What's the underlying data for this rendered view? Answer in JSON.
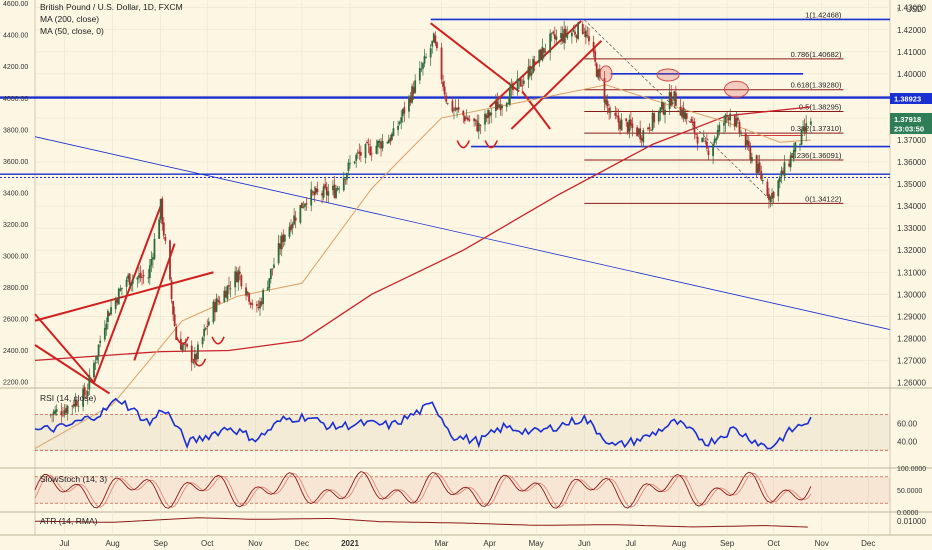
{
  "legend": {
    "title": "British Pound / U.S. Dollar, 1D, FXCM",
    "ma200": "MA (200, close)",
    "ma50": "MA (50, close, 0)"
  },
  "currency": "USD",
  "panels": {
    "rsi_label": "RSI (14, close)",
    "stoch_label": "SlowStoch (14, 3)",
    "atr_label": "ATR (14, RMA)"
  },
  "price_tags": {
    "level": "1.38923",
    "last": "1.37918",
    "countdown": "23:03:50"
  },
  "colors": {
    "background": "#fdf6e3",
    "candle_up": "#2f6b3a",
    "candle_down": "#b02a2a",
    "ma200": "#c8232c",
    "ma50": "#d9a066",
    "blue_lines": "#1a2fd1",
    "fib_lines": "#8b1a1a",
    "rsi_line": "#1a2fd1",
    "stoch_k": "#8b1a1a",
    "stoch_d": "#e08a7a"
  },
  "chart_data": [
    {
      "type": "candlestick",
      "title": "British Pound / U.S. Dollar, 1D, FXCM",
      "right_axis_ticks": [
        "1.43000",
        "1.42000",
        "1.41000",
        "1.40000",
        "1.39000",
        "1.38000",
        "1.37000",
        "1.36000",
        "1.35000",
        "1.34000",
        "1.33000",
        "1.32000",
        "1.31000",
        "1.30000",
        "1.29000",
        "1.28000",
        "1.27000",
        "1.26000"
      ],
      "left_axis_ticks": [
        "4600.00",
        "4400.00",
        "4200.00",
        "4000.00",
        "3800.00",
        "3600.00",
        "3400.00",
        "3200.00",
        "3000.00",
        "2800.00",
        "2600.00",
        "2400.00",
        "2200.00"
      ],
      "x_ticks": [
        "Jul",
        "Aug",
        "Sep",
        "Oct",
        "Nov",
        "Dec",
        "2021",
        "Mar",
        "Apr",
        "May",
        "Jun",
        "Jul",
        "Aug",
        "Sep",
        "Oct",
        "Nov",
        "Dec"
      ],
      "ylim": [
        1.2575,
        1.4335
      ],
      "left_ylim": [
        2160,
        4620
      ],
      "xlim": [
        "2020-06-12",
        "2021-12-15"
      ],
      "fib_levels": [
        {
          "label": "1(1.42468)",
          "value": 1.42468
        },
        {
          "label": "0.786(1.40682)",
          "value": 1.40682
        },
        {
          "label": "0.618(1.39280)",
          "value": 1.3928
        },
        {
          "label": "0.5(1.38295)",
          "value": 1.38295
        },
        {
          "label": "0.382(1.37310)",
          "value": 1.3731
        },
        {
          "label": "0.236(1.36091)",
          "value": 1.36091
        },
        {
          "label": "0(1.34122)",
          "value": 1.34122
        }
      ],
      "horizontal_levels": [
        1.42468,
        1.4,
        1.38923,
        1.367,
        1.3545,
        1.353
      ],
      "close_path": [
        [
          "2020-06-20",
          1.245
        ],
        [
          "2020-07-01",
          1.248
        ],
        [
          "2020-07-15",
          1.255
        ],
        [
          "2020-07-28",
          1.29
        ],
        [
          "2020-08-10",
          1.307
        ],
        [
          "2020-08-24",
          1.308
        ],
        [
          "2020-09-01",
          1.34
        ],
        [
          "2020-09-11",
          1.28
        ],
        [
          "2020-09-23",
          1.27
        ],
        [
          "2020-10-05",
          1.294
        ],
        [
          "2020-10-21",
          1.31
        ],
        [
          "2020-11-02",
          1.292
        ],
        [
          "2020-11-20",
          1.328
        ],
        [
          "2020-12-04",
          1.344
        ],
        [
          "2020-12-22",
          1.347
        ],
        [
          "2021-01-04",
          1.362
        ],
        [
          "2021-01-29",
          1.372
        ],
        [
          "2021-02-24",
          1.415
        ],
        [
          "2021-03-05",
          1.386
        ],
        [
          "2021-03-25",
          1.376
        ],
        [
          "2021-04-05",
          1.385
        ],
        [
          "2021-04-20",
          1.395
        ],
        [
          "2021-05-10",
          1.415
        ],
        [
          "2021-06-01",
          1.421
        ],
        [
          "2021-06-18",
          1.38
        ],
        [
          "2021-07-08",
          1.373
        ],
        [
          "2021-07-28",
          1.39
        ],
        [
          "2021-08-19",
          1.365
        ],
        [
          "2021-09-03",
          1.383
        ],
        [
          "2021-09-29",
          1.344
        ],
        [
          "2021-10-12",
          1.362
        ],
        [
          "2021-10-25",
          1.3792
        ]
      ],
      "ma200_path": [
        [
          "2020-06-12",
          1.27
        ],
        [
          "2020-09-01",
          1.274
        ],
        [
          "2020-10-15",
          1.2745
        ],
        [
          "2020-12-01",
          1.279
        ],
        [
          "2021-01-15",
          1.3
        ],
        [
          "2021-03-15",
          1.32
        ],
        [
          "2021-05-15",
          1.345
        ],
        [
          "2021-07-15",
          1.368
        ],
        [
          "2021-09-01",
          1.381
        ],
        [
          "2021-10-25",
          1.385
        ]
      ],
      "ma50_path": [
        [
          "2020-06-12",
          1.23
        ],
        [
          "2020-08-01",
          1.25
        ],
        [
          "2020-09-15",
          1.288
        ],
        [
          "2020-10-20",
          1.299
        ],
        [
          "2020-12-01",
          1.305
        ],
        [
          "2021-01-15",
          1.348
        ],
        [
          "2021-03-01",
          1.38
        ],
        [
          "2021-04-20",
          1.387
        ],
        [
          "2021-06-15",
          1.395
        ],
        [
          "2021-07-25",
          1.386
        ],
        [
          "2021-09-01",
          1.378
        ],
        [
          "2021-10-05",
          1.369
        ],
        [
          "2021-10-25",
          1.37
        ]
      ]
    },
    {
      "type": "line",
      "name": "RSI (14, close)",
      "ticks": [
        "60.00",
        "40.00"
      ],
      "ylim": [
        10,
        100
      ],
      "bands": [
        30,
        70
      ],
      "path": [
        [
          "2020-06-12",
          52
        ],
        [
          "2020-07-01",
          56
        ],
        [
          "2020-07-25",
          72
        ],
        [
          "2020-08-05",
          88
        ],
        [
          "2020-08-25",
          60
        ],
        [
          "2020-09-03",
          78
        ],
        [
          "2020-09-18",
          38
        ],
        [
          "2020-09-28",
          44
        ],
        [
          "2020-10-15",
          56
        ],
        [
          "2020-11-02",
          42
        ],
        [
          "2020-11-18",
          64
        ],
        [
          "2020-12-04",
          68
        ],
        [
          "2020-12-20",
          56
        ],
        [
          "2021-01-10",
          60
        ],
        [
          "2021-01-28",
          58
        ],
        [
          "2021-02-24",
          82
        ],
        [
          "2021-03-08",
          46
        ],
        [
          "2021-03-25",
          40
        ],
        [
          "2021-04-10",
          56
        ],
        [
          "2021-05-01",
          50
        ],
        [
          "2021-05-20",
          60
        ],
        [
          "2021-06-01",
          66
        ],
        [
          "2021-06-20",
          34
        ],
        [
          "2021-07-10",
          44
        ],
        [
          "2021-07-30",
          62
        ],
        [
          "2021-08-20",
          38
        ],
        [
          "2021-09-05",
          54
        ],
        [
          "2021-09-28",
          32
        ],
        [
          "2021-10-12",
          52
        ],
        [
          "2021-10-25",
          64
        ]
      ]
    },
    {
      "type": "line",
      "name": "SlowStoch (14, 3)",
      "ticks": [
        "100.0000",
        "50.0000",
        "0.0000"
      ],
      "ylim": [
        0,
        100
      ],
      "bands": [
        20,
        80
      ],
      "series_k_seed": 0.13,
      "series_d_seed": 0.11
    },
    {
      "type": "line",
      "name": "ATR (14, RMA)",
      "ticks": [
        "0.01000"
      ],
      "ylim": [
        0.004,
        0.014
      ],
      "path": [
        [
          "2020-06-12",
          0.01
        ],
        [
          "2020-08-01",
          0.0095
        ],
        [
          "2020-09-25",
          0.0115
        ],
        [
          "2020-11-01",
          0.0108
        ],
        [
          "2020-12-20",
          0.0112
        ],
        [
          "2021-01-20",
          0.0098
        ],
        [
          "2021-03-15",
          0.0092
        ],
        [
          "2021-05-01",
          0.0082
        ],
        [
          "2021-06-20",
          0.0085
        ],
        [
          "2021-08-10",
          0.0075
        ],
        [
          "2021-09-25",
          0.0081
        ],
        [
          "2021-10-25",
          0.0074
        ]
      ]
    }
  ]
}
